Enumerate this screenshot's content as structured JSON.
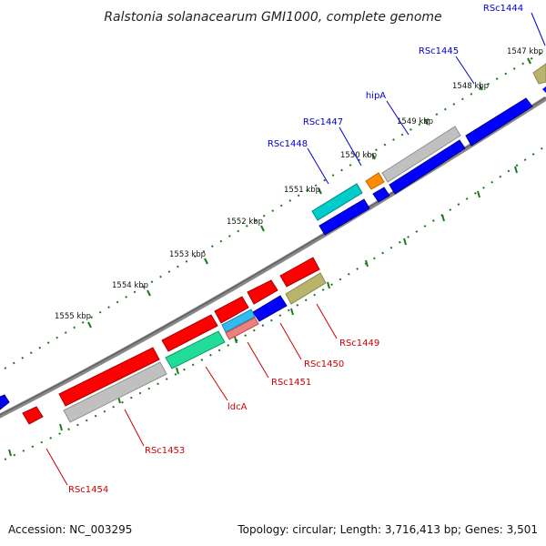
{
  "map": {
    "title": "Ralstonia solanacearum GMI1000, complete genome",
    "colors": {
      "forward_gene": "#ff0000",
      "reverse_gene": "#0000ff",
      "pseudo_gene": "#c0c0c0",
      "cyan_gene": "#00cccc",
      "orange_gene": "#ff8c00",
      "olive_gene": "#b8b46c",
      "teal_gene": "#22dd99",
      "sky_gene": "#33bbee",
      "pink_gene": "#ee8080",
      "backbone": "#888888",
      "tick": "#1a7a1a",
      "forward_label": "#cc0000",
      "reverse_label": "#0000cc"
    },
    "ticks": [
      {
        "label": "1547 kbp"
      },
      {
        "label": "1548 kbp"
      },
      {
        "label": "1549 kbp"
      },
      {
        "label": "1550 kbp"
      },
      {
        "label": "1551 kbp"
      },
      {
        "label": "1552 kbp"
      },
      {
        "label": "1553 kbp"
      },
      {
        "label": "1554 kbp"
      },
      {
        "label": "1555 kbp"
      }
    ],
    "gene_labels": [
      {
        "name": "RSc1444",
        "strand": "reverse"
      },
      {
        "name": "RSc1445",
        "strand": "reverse"
      },
      {
        "name": "hipA",
        "strand": "reverse"
      },
      {
        "name": "RSc1447",
        "strand": "reverse"
      },
      {
        "name": "RSc1448",
        "strand": "reverse"
      },
      {
        "name": "RSc1449",
        "strand": "forward"
      },
      {
        "name": "RSc1450",
        "strand": "forward"
      },
      {
        "name": "RSc1451",
        "strand": "forward"
      },
      {
        "name": "ldcA",
        "strand": "forward"
      },
      {
        "name": "RSc1453",
        "strand": "forward"
      },
      {
        "name": "RSc1454",
        "strand": "forward"
      }
    ]
  },
  "footer": {
    "accession": "Accession: NC_003295",
    "topology": "Topology: circular; Length: 3,716,413 bp; Genes: 3,501"
  }
}
